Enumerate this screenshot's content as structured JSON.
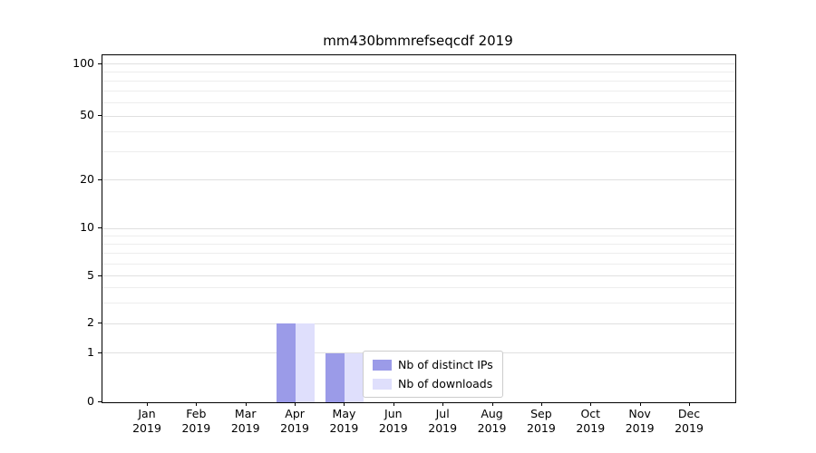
{
  "chart_data": {
    "type": "bar",
    "title": "mm430bmmrefseqcdf 2019",
    "categories": [
      "Jan 2019",
      "Feb 2019",
      "Mar 2019",
      "Apr 2019",
      "May 2019",
      "Jun 2019",
      "Jul 2019",
      "Aug 2019",
      "Sep 2019",
      "Oct 2019",
      "Nov 2019",
      "Dec 2019"
    ],
    "series": [
      {
        "name": "Nb of distinct IPs",
        "color": "#9b9be8",
        "values": [
          0,
          0,
          0,
          2,
          1,
          0,
          0,
          0,
          0,
          0,
          0,
          0
        ]
      },
      {
        "name": "Nb of downloads",
        "color": "#dfdffc",
        "values": [
          0,
          0,
          0,
          2,
          1,
          0,
          0,
          0,
          0,
          0,
          0,
          0
        ]
      }
    ],
    "xlabel": "",
    "ylabel": "",
    "yscale": "symlog",
    "yticks": [
      0,
      1,
      2,
      5,
      10,
      20,
      50,
      100
    ],
    "minor_gridlines": [
      3,
      4,
      6,
      7,
      8,
      9,
      30,
      40,
      60,
      70,
      80,
      90
    ],
    "ylim": [
      0,
      115
    ],
    "grid": true,
    "legend": {
      "position": "inside-bottom-center",
      "entries": [
        "Nb of distinct IPs",
        "Nb of downloads"
      ]
    }
  }
}
